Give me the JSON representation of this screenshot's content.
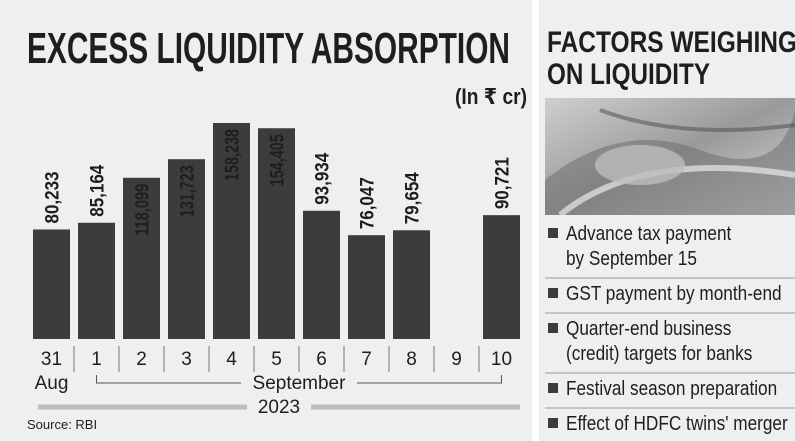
{
  "chart_data": {
    "type": "bar",
    "title": "EXCESS LIQUIDITY ABSORPTION",
    "unit_label": "(In ₹ cr)",
    "categories": [
      "31",
      "1",
      "2",
      "3",
      "4",
      "5",
      "6",
      "7",
      "8",
      "9",
      "10"
    ],
    "values": [
      80233,
      85164,
      118099,
      131723,
      158238,
      154405,
      93934,
      76047,
      79654,
      null,
      90721
    ],
    "value_labels": [
      "80,233",
      "85,164",
      "118,099",
      "131,723",
      "158,238",
      "154,405",
      "93,934",
      "76,047",
      "79,654",
      null,
      "90,721"
    ],
    "color": "#3c3c3c",
    "first_month": "Aug",
    "second_month": "September",
    "year": "2023",
    "source": "Source: RBI"
  },
  "sidebar": {
    "title_lines": [
      "FACTORS WEIGHING",
      "ON LIQUIDITY"
    ],
    "items": [
      [
        "Advance tax payment",
        "by September 15"
      ],
      [
        "GST payment by month-end"
      ],
      [
        "Quarter-end business",
        "(credit) targets for banks"
      ],
      [
        "Festival season preparation"
      ],
      [
        "Effect of HDFC twins' merger"
      ]
    ]
  }
}
